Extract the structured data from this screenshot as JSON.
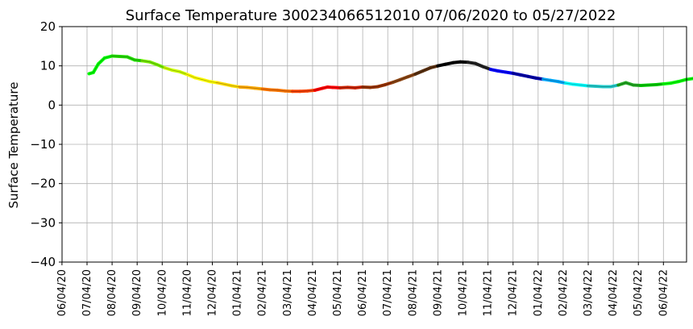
{
  "chart_data": {
    "type": "line",
    "title": "Surface Temperature 300234066512010  07/06/2020 to 05/27/2022",
    "xlabel": "",
    "ylabel": "Surface Temperature",
    "ylim": [
      -40,
      20
    ],
    "yticks": [
      -40,
      -30,
      -20,
      -10,
      0,
      10,
      20
    ],
    "xticks": [
      "06/04/20",
      "07/04/20",
      "08/04/20",
      "09/04/20",
      "10/04/20",
      "11/04/20",
      "12/04/20",
      "01/04/21",
      "02/04/21",
      "03/04/21",
      "04/04/21",
      "05/04/21",
      "06/04/21",
      "07/04/21",
      "08/04/21",
      "09/04/21",
      "10/04/21",
      "11/04/21",
      "12/04/21",
      "01/04/22",
      "02/04/22",
      "03/04/22",
      "04/04/22",
      "05/04/22",
      "06/04/22"
    ],
    "grid": true,
    "series": [
      {
        "values": [
          [
            0.08,
            8.0
          ],
          [
            0.25,
            8.3
          ],
          [
            0.45,
            10.5
          ],
          [
            0.7,
            12.0
          ],
          [
            1.0,
            12.5
          ],
          [
            1.3,
            12.4
          ],
          [
            1.6,
            12.3
          ],
          [
            1.9,
            11.5
          ],
          [
            2.2,
            11.3
          ],
          [
            2.5,
            11.0
          ],
          [
            2.8,
            10.3
          ],
          [
            3.1,
            9.5
          ],
          [
            3.4,
            8.9
          ],
          [
            3.7,
            8.5
          ],
          [
            4.0,
            7.8
          ],
          [
            4.3,
            7.0
          ],
          [
            4.6,
            6.5
          ],
          [
            4.9,
            6.0
          ],
          [
            5.2,
            5.7
          ],
          [
            5.5,
            5.3
          ],
          [
            5.8,
            4.9
          ],
          [
            6.1,
            4.6
          ],
          [
            6.4,
            4.5
          ],
          [
            6.7,
            4.3
          ],
          [
            7.0,
            4.1
          ],
          [
            7.3,
            3.9
          ],
          [
            7.6,
            3.8
          ],
          [
            7.9,
            3.6
          ],
          [
            8.2,
            3.5
          ],
          [
            8.5,
            3.5
          ],
          [
            8.8,
            3.6
          ],
          [
            9.1,
            3.8
          ],
          [
            9.4,
            4.3
          ],
          [
            9.6,
            4.6
          ],
          [
            9.8,
            4.5
          ],
          [
            10.1,
            4.4
          ],
          [
            10.4,
            4.5
          ],
          [
            10.7,
            4.4
          ],
          [
            11.0,
            4.6
          ],
          [
            11.3,
            4.5
          ],
          [
            11.6,
            4.7
          ],
          [
            11.9,
            5.2
          ],
          [
            12.2,
            5.8
          ],
          [
            12.5,
            6.5
          ],
          [
            12.8,
            7.2
          ],
          [
            13.1,
            7.9
          ],
          [
            13.4,
            8.7
          ],
          [
            13.7,
            9.5
          ],
          [
            14.0,
            10.0
          ],
          [
            14.3,
            10.4
          ],
          [
            14.6,
            10.8
          ],
          [
            14.9,
            11.0
          ],
          [
            15.2,
            10.9
          ],
          [
            15.5,
            10.6
          ],
          [
            15.8,
            9.8
          ],
          [
            16.1,
            9.1
          ],
          [
            16.4,
            8.7
          ],
          [
            16.7,
            8.4
          ],
          [
            17.0,
            8.1
          ],
          [
            17.3,
            7.7
          ],
          [
            17.6,
            7.3
          ],
          [
            17.9,
            6.9
          ],
          [
            18.2,
            6.6
          ],
          [
            18.5,
            6.3
          ],
          [
            18.8,
            6.0
          ],
          [
            19.1,
            5.6
          ],
          [
            19.4,
            5.3
          ],
          [
            19.7,
            5.1
          ],
          [
            20.0,
            4.9
          ],
          [
            20.3,
            4.8
          ],
          [
            20.6,
            4.7
          ],
          [
            20.9,
            4.7
          ],
          [
            21.2,
            5.1
          ],
          [
            21.5,
            5.7
          ],
          [
            21.8,
            5.1
          ],
          [
            22.1,
            5.0
          ],
          [
            22.4,
            5.1
          ],
          [
            22.7,
            5.2
          ],
          [
            23.0,
            5.4
          ],
          [
            23.3,
            5.6
          ],
          [
            23.6,
            6.0
          ],
          [
            23.9,
            6.5
          ],
          [
            24.2,
            6.8
          ],
          [
            24.55,
            7.1
          ],
          [
            24.75,
            7.0
          ]
        ]
      }
    ],
    "segment_colors": [
      "#00ff00",
      "#22dd00",
      "#77ee00",
      "#ccff00",
      "#ffff00",
      "#ffdd00",
      "#ffaa00",
      "#ff7700",
      "#ff4400",
      "#ff0000",
      "#cc2200",
      "#993300",
      "#8b4513",
      "#5a3010",
      "#000000",
      "#222222",
      "#0000ff",
      "#0000aa",
      "#00aaff",
      "#00ffff",
      "#22cccc",
      "#22aa22",
      "#00cc00",
      "#00ff00"
    ]
  }
}
